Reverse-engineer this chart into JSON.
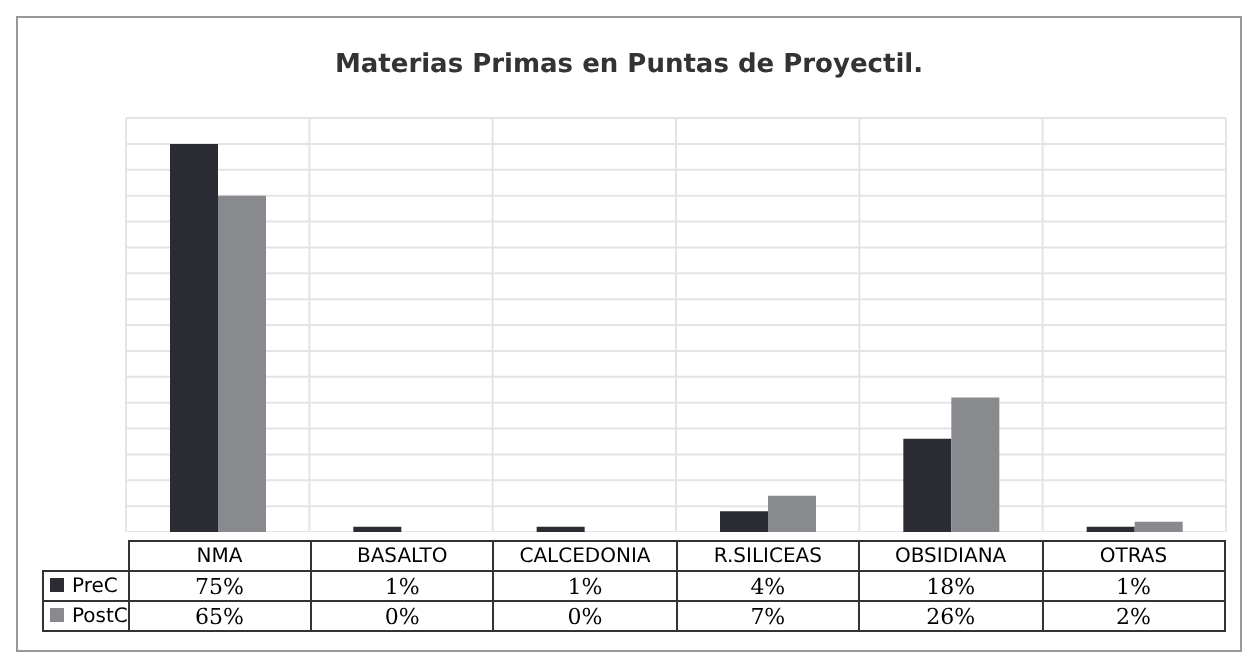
{
  "chart_data": {
    "type": "bar",
    "title": "Materias Primas en Puntas de Proyectil.",
    "categories": [
      "NMA",
      "BASALTO",
      "CALCEDONIA",
      "R.SILICEAS",
      "OBSIDIANA",
      "OTRAS"
    ],
    "series": [
      {
        "name": "PreC",
        "color": "#2b2c33",
        "values": [
          75,
          1,
          1,
          4,
          18,
          1
        ],
        "value_labels": [
          "75%",
          "1%",
          "1%",
          "4%",
          "18%",
          "1%"
        ]
      },
      {
        "name": "PostC",
        "color": "#898a8e",
        "values": [
          65,
          0,
          0,
          7,
          26,
          2
        ],
        "value_labels": [
          "65%",
          "0%",
          "0%",
          "7%",
          "26%",
          "2%"
        ]
      }
    ],
    "ylim": [
      0,
      80
    ],
    "yticks": [
      {
        "value": 0,
        "label": null
      },
      {
        "value": 5,
        "label": null
      },
      {
        "value": 10,
        "label": null
      },
      {
        "value": 15,
        "label": null
      },
      {
        "value": 20,
        "label": null
      },
      {
        "value": 25,
        "label": null
      },
      {
        "value": 30,
        "label": null
      },
      {
        "value": 35,
        "label": null
      },
      {
        "value": 40,
        "label": null
      },
      {
        "value": 45,
        "label": null
      },
      {
        "value": 50,
        "label": null
      },
      {
        "value": 55,
        "label": null
      },
      {
        "value": 60,
        "label": null
      },
      {
        "value": 65,
        "label": null
      },
      {
        "value": 70,
        "label": null
      },
      {
        "value": 75,
        "label": null
      },
      {
        "value": 80,
        "label": null
      }
    ],
    "tick_labels": "x",
    "grid": true,
    "legend": "bottom left"
  }
}
